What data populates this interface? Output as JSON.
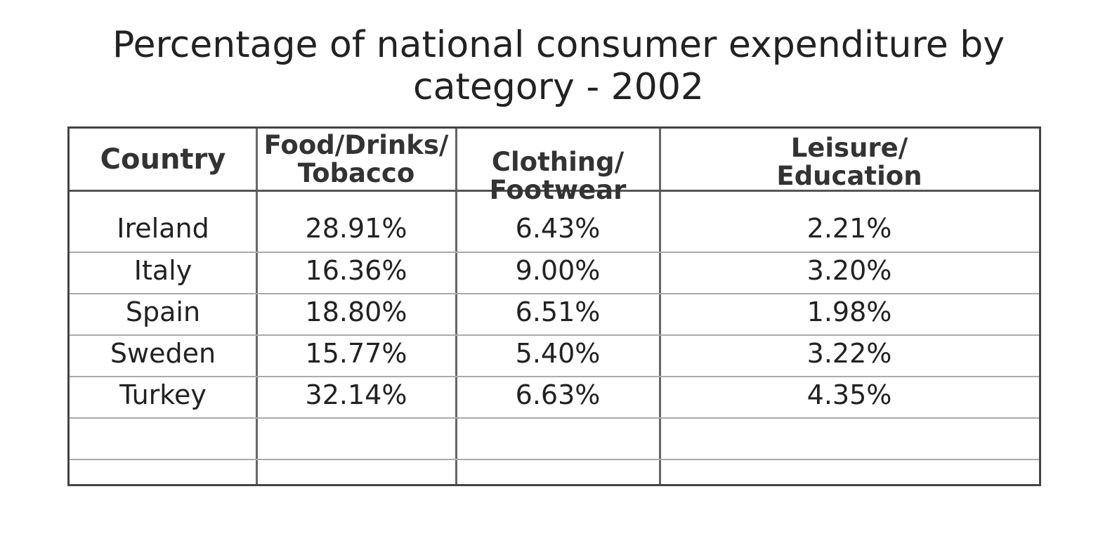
{
  "chart_data": {
    "type": "table",
    "title": "Percentage of national consumer expenditure by category - 2002",
    "title_lines": [
      "Percentage of national consumer expenditure by",
      "category - 2002"
    ],
    "columns": [
      {
        "key": "country",
        "label": "Country",
        "lines": [
          "Country"
        ]
      },
      {
        "key": "food",
        "label": "Food/Drinks/ Tobacco",
        "lines": [
          "Food/Drinks/",
          "Tobacco"
        ]
      },
      {
        "key": "clothing",
        "label": "Clothing/ Footwear",
        "lines": [
          "Clothing/",
          "Footwear"
        ]
      },
      {
        "key": "leisure",
        "label": "Leisure/ Education",
        "lines": [
          "Leisure/",
          "Education"
        ]
      }
    ],
    "rows": [
      {
        "country": "Ireland",
        "food": "28.91%",
        "clothing": "6.43%",
        "leisure": "2.21%"
      },
      {
        "country": "Italy",
        "food": "16.36%",
        "clothing": "9.00%",
        "leisure": "3.20%"
      },
      {
        "country": "Spain",
        "food": "18.80%",
        "clothing": "6.51%",
        "leisure": "1.98%"
      },
      {
        "country": "Sweden",
        "food": "15.77%",
        "clothing": "5.40%",
        "leisure": "3.22%"
      },
      {
        "country": "Turkey",
        "food": "32.14%",
        "clothing": "6.63%",
        "leisure": "4.35%"
      },
      {
        "country": "",
        "food": "",
        "clothing": "",
        "leisure": ""
      },
      {
        "country": "",
        "food": "",
        "clothing": "",
        "leisure": ""
      }
    ]
  }
}
